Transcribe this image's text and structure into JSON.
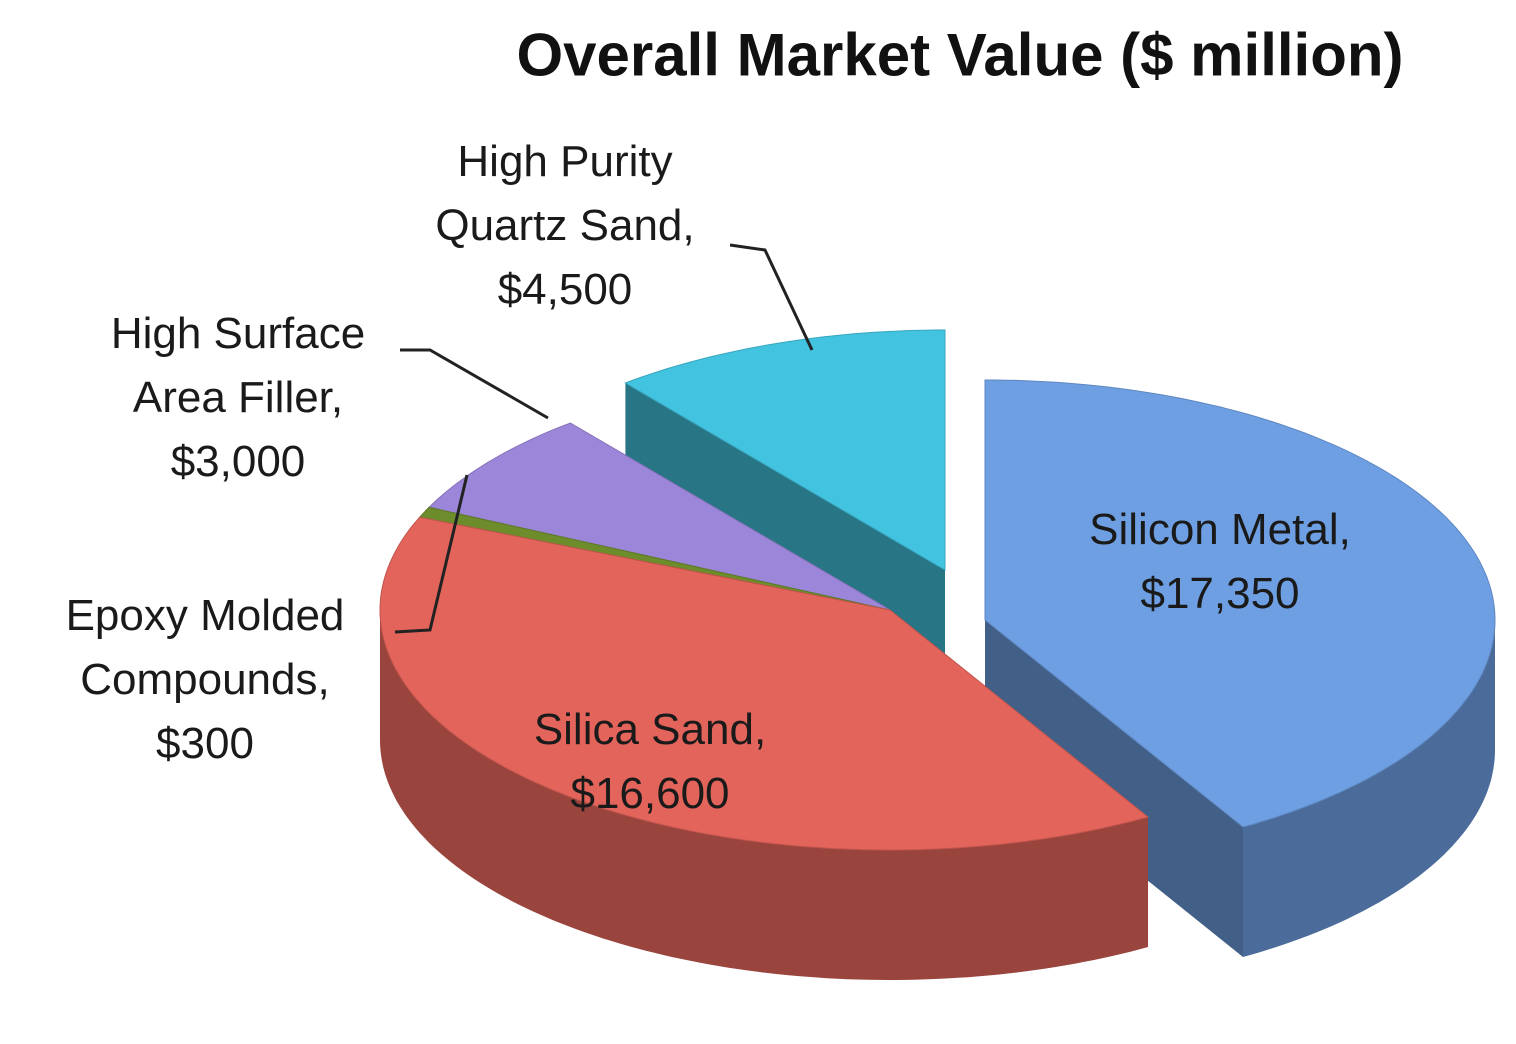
{
  "chart_data": {
    "type": "pie3d",
    "title": "Overall Market Value ($ million)",
    "categories": [
      "Silicon Metal,",
      "Silica Sand,",
      "Epoxy Molded Compounds,",
      "High Surface Area Filler,",
      "High Purity Quartz Sand,"
    ],
    "values": [
      17350,
      16600,
      300,
      3000,
      4500
    ],
    "value_labels": [
      "$17,350",
      "$16,600",
      "$300",
      "$3,000",
      "$4,500"
    ],
    "colors": [
      "#6e9fe2",
      "#e2645b",
      "#6d8d2c",
      "#9c86d9",
      "#42c3e0"
    ]
  }
}
